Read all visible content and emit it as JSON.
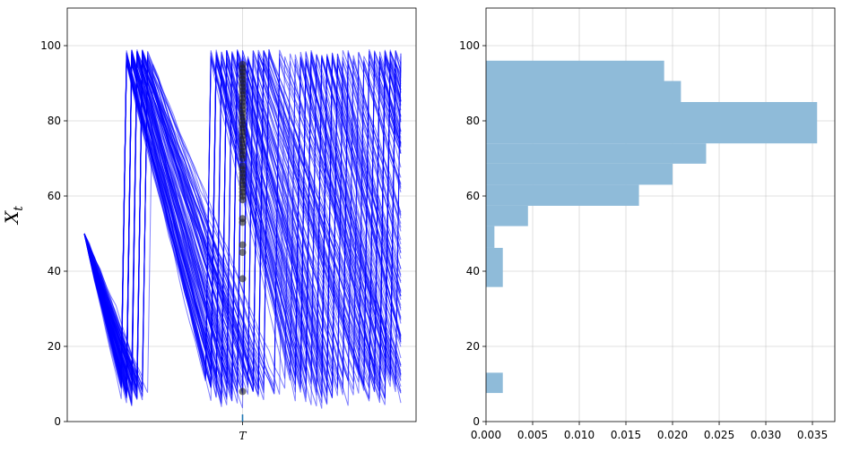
{
  "chart_data": [
    {
      "type": "line",
      "panel": "left",
      "title": "",
      "xlabel": "",
      "ylabel": "X",
      "ylabel_subscript": "t",
      "ylim": [
        0,
        110
      ],
      "yticks": [
        "0",
        "20",
        "40",
        "60",
        "80",
        "100"
      ],
      "xticks": [
        "T"
      ],
      "grid": true,
      "line_color": "#0000ff",
      "line_alpha": 0.5,
      "marker_color": "#222222",
      "n_paths": 120,
      "n_steps": 60,
      "initial_value": 50,
      "T_step": 30,
      "process_description": "sawtooth: decreases steadily, jumps up to ~97 when dropping below ~10",
      "terminal_values_at_T": [
        8,
        38,
        45,
        47,
        53,
        54,
        59,
        60,
        61,
        62,
        63,
        64,
        65,
        66,
        67,
        68,
        70,
        71,
        72,
        73,
        74,
        75,
        76,
        77,
        78,
        79,
        80,
        81,
        82,
        83,
        84,
        85,
        86,
        87,
        88,
        89,
        90,
        91,
        92,
        93,
        94,
        95
      ]
    },
    {
      "type": "bar",
      "panel": "right",
      "orientation": "horizontal",
      "title": "",
      "xlabel": "",
      "ylabel": "",
      "xlim": [
        0,
        0.0374
      ],
      "ylim": [
        0,
        110
      ],
      "xticks": [
        "0.000",
        "0.005",
        "0.010",
        "0.015",
        "0.020",
        "0.025",
        "0.030",
        "0.035"
      ],
      "yticks": [
        "0",
        "20",
        "40",
        "60",
        "80",
        "100"
      ],
      "grid": true,
      "bar_color": "#8fbbd9",
      "bins": [
        {
          "y0": 7.6,
          "y1": 13.0,
          "density": 0.0018
        },
        {
          "y0": 35.8,
          "y1": 46.2,
          "density": 0.0018
        },
        {
          "y0": 46.2,
          "y1": 52.0,
          "density": 0.0009
        },
        {
          "y0": 52.0,
          "y1": 57.4,
          "density": 0.0045
        },
        {
          "y0": 57.4,
          "y1": 63.0,
          "density": 0.0164
        },
        {
          "y0": 63.0,
          "y1": 68.6,
          "density": 0.02
        },
        {
          "y0": 68.6,
          "y1": 74.0,
          "density": 0.0236
        },
        {
          "y0": 74.0,
          "y1": 85.0,
          "density": 0.0355
        },
        {
          "y0": 85.0,
          "y1": 90.6,
          "density": 0.0209
        },
        {
          "y0": 90.6,
          "y1": 96.0,
          "density": 0.0191
        }
      ]
    }
  ]
}
